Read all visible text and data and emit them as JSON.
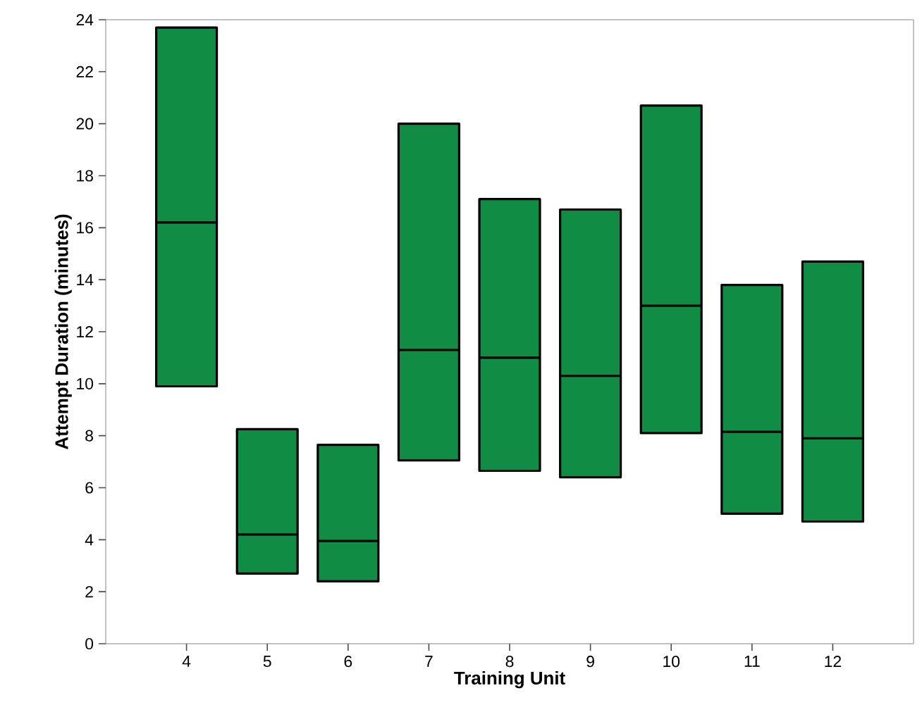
{
  "chart_data": {
    "type": "box",
    "xlabel": "Training Unit",
    "ylabel": "Attempt Duration (minutes)",
    "categories": [
      "4",
      "5",
      "6",
      "7",
      "8",
      "9",
      "10",
      "11",
      "12"
    ],
    "color": "#118c45",
    "boxes": [
      {
        "low": 9.9,
        "q1": 9.9,
        "median": 16.2,
        "q3": 23.7,
        "high": 23.7
      },
      {
        "low": 2.7,
        "q1": 2.7,
        "median": 4.2,
        "q3": 8.25,
        "high": 8.25
      },
      {
        "low": 2.4,
        "q1": 2.4,
        "median": 3.95,
        "q3": 7.65,
        "high": 7.65
      },
      {
        "low": 7.05,
        "q1": 7.05,
        "median": 11.3,
        "q3": 20.0,
        "high": 20.0
      },
      {
        "low": 6.65,
        "q1": 6.65,
        "median": 11.0,
        "q3": 17.1,
        "high": 17.1
      },
      {
        "low": 6.4,
        "q1": 6.4,
        "median": 10.3,
        "q3": 16.7,
        "high": 16.7
      },
      {
        "low": 8.1,
        "q1": 8.1,
        "median": 13.0,
        "q3": 20.7,
        "high": 20.7
      },
      {
        "low": 5.0,
        "q1": 5.0,
        "median": 8.15,
        "q3": 13.8,
        "high": 13.8
      },
      {
        "low": 4.7,
        "q1": 4.7,
        "median": 7.9,
        "q3": 14.7,
        "high": 14.7
      }
    ],
    "ylim": [
      0,
      24
    ],
    "yticks": [
      0,
      2,
      4,
      6,
      8,
      10,
      12,
      14,
      16,
      18,
      20,
      22,
      24
    ],
    "grid": false
  }
}
